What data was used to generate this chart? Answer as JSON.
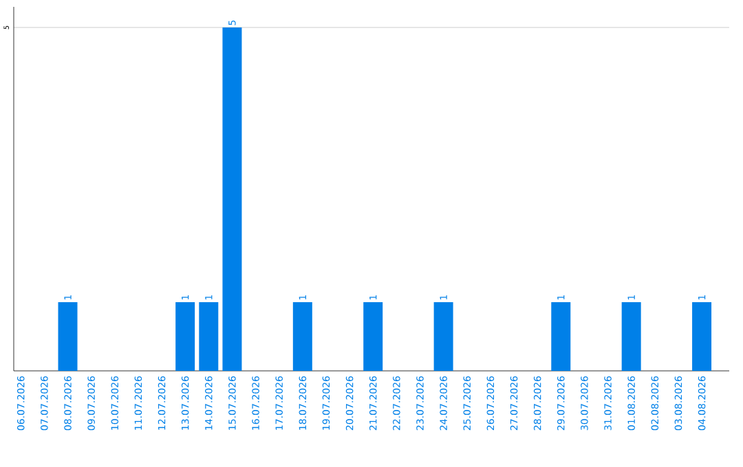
{
  "chart_data": {
    "type": "bar",
    "color": "#0080e8",
    "categories": [
      "06.07.2026",
      "07.07.2026",
      "08.07.2026",
      "09.07.2026",
      "10.07.2026",
      "11.07.2026",
      "12.07.2026",
      "13.07.2026",
      "14.07.2026",
      "15.07.2026",
      "16.07.2026",
      "17.07.2026",
      "18.07.2026",
      "19.07.2026",
      "20.07.2026",
      "21.07.2026",
      "22.07.2026",
      "23.07.2026",
      "24.07.2026",
      "25.07.2026",
      "26.07.2026",
      "27.07.2026",
      "28.07.2026",
      "29.07.2026",
      "30.07.2026",
      "31.07.2026",
      "01.08.2026",
      "02.08.2026",
      "03.08.2026",
      "04.08.2026"
    ],
    "values": [
      0,
      0,
      1,
      0,
      0,
      0,
      0,
      1,
      1,
      5,
      0,
      0,
      1,
      0,
      0,
      1,
      0,
      0,
      1,
      0,
      0,
      0,
      0,
      1,
      0,
      0,
      1,
      0,
      0,
      1
    ],
    "value_labels": [
      null,
      null,
      "1",
      null,
      null,
      null,
      null,
      "1",
      "1",
      "5",
      null,
      null,
      "1",
      null,
      null,
      "1",
      null,
      null,
      "1",
      null,
      null,
      null,
      null,
      "1",
      null,
      null,
      "1",
      null,
      null,
      "1"
    ],
    "ylim": [
      0,
      5.3
    ],
    "yticks": [
      5
    ],
    "grid": "y"
  }
}
